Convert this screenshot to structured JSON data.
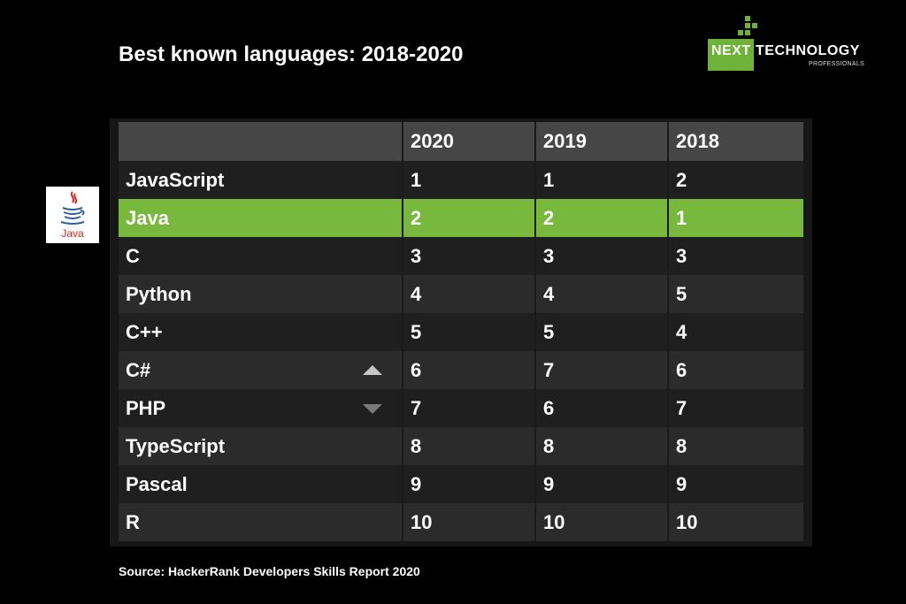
{
  "title": "Best known languages: 2018-2020",
  "logo": {
    "word1": "NEXT",
    "word2": "TECHNOLOGY",
    "sub": "PROFESSIONALS"
  },
  "java_logo_text": "Java",
  "source": "Source: HackerRank Developers Skills Report 2020",
  "colors": {
    "highlight": "#78b83c",
    "brand_green": "#6fb23a",
    "background": "#000000"
  },
  "chart_data": {
    "type": "table",
    "columns": [
      "",
      "",
      "2020",
      "2019",
      "2018"
    ],
    "rows": [
      {
        "language": "JavaScript",
        "trend": "",
        "y2020": "1",
        "y2019": "1",
        "y2018": "2"
      },
      {
        "language": "Java",
        "trend": "",
        "y2020": "2",
        "y2019": "2",
        "y2018": "1",
        "highlight": true
      },
      {
        "language": "C",
        "trend": "",
        "y2020": "3",
        "y2019": "3",
        "y2018": "3"
      },
      {
        "language": "Python",
        "trend": "",
        "y2020": "4",
        "y2019": "4",
        "y2018": "5"
      },
      {
        "language": "C++",
        "trend": "",
        "y2020": "5",
        "y2019": "5",
        "y2018": "4"
      },
      {
        "language": "C#",
        "trend": "up",
        "y2020": "6",
        "y2019": "7",
        "y2018": "6"
      },
      {
        "language": "PHP",
        "trend": "down",
        "y2020": "7",
        "y2019": "6",
        "y2018": "7"
      },
      {
        "language": "TypeScript",
        "trend": "",
        "y2020": "8",
        "y2019": "8",
        "y2018": "8"
      },
      {
        "language": "Pascal",
        "trend": "",
        "y2020": "9",
        "y2019": "9",
        "y2018": "9"
      },
      {
        "language": "R",
        "trend": "",
        "y2020": "10",
        "y2019": "10",
        "y2018": "10"
      }
    ]
  }
}
